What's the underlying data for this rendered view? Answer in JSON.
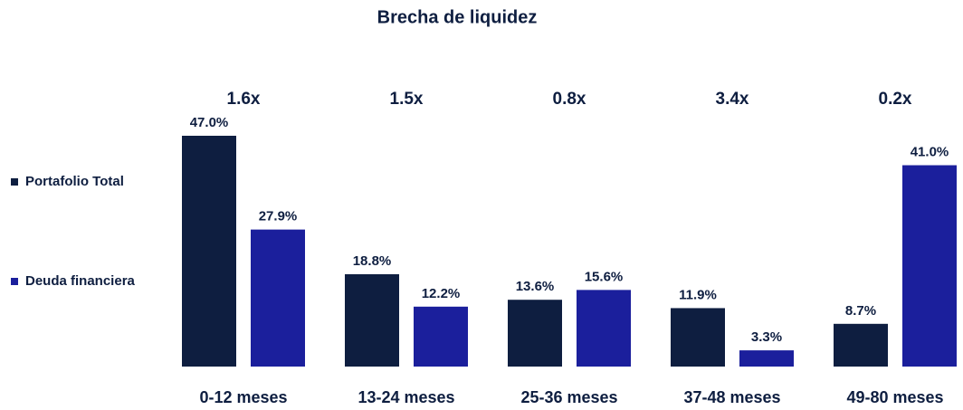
{
  "chart_data": {
    "type": "bar",
    "title": "Brecha de liquidez",
    "categories": [
      "0-12 meses",
      "13-24 meses",
      "25-36 meses",
      "37-48 meses",
      "49-80 meses"
    ],
    "annotations": [
      "1.6x",
      "1.5x",
      "0.8x",
      "3.4x",
      "0.2x"
    ],
    "series": [
      {
        "name": "Portafolio Total",
        "color": "#0e1e40",
        "values": [
          47.0,
          18.8,
          13.6,
          11.9,
          8.7
        ],
        "value_labels": [
          "47.0%",
          "18.8%",
          "13.6%",
          "11.9%",
          "8.7%"
        ]
      },
      {
        "name": "Deuda financiera",
        "color": "#1b1f9c",
        "values": [
          27.9,
          12.2,
          15.6,
          3.3,
          41.0
        ],
        "value_labels": [
          "27.9%",
          "12.2%",
          "15.6%",
          "3.3%",
          "41.0%"
        ]
      }
    ],
    "legend": "left"
  }
}
